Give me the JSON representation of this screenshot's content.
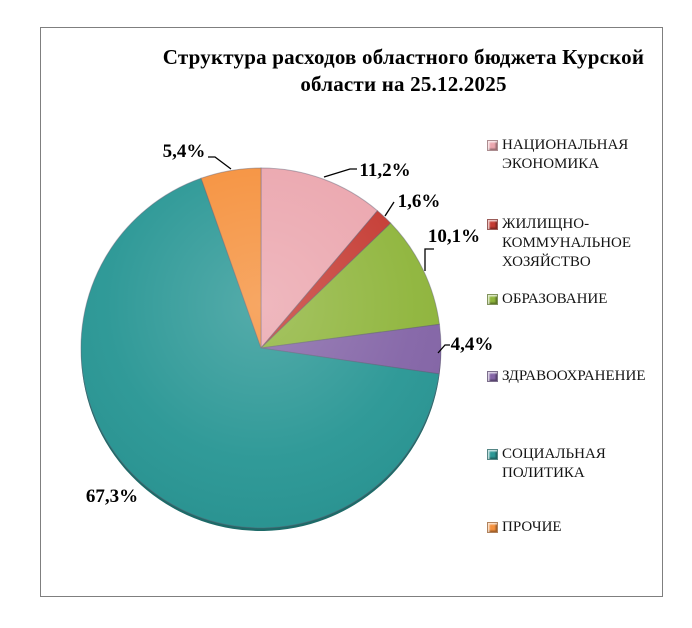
{
  "title": "Структура  расходов областного бюджета Курской области на 25.12.2025",
  "chart_data": {
    "type": "pie",
    "title": "Структура  расходов областного бюджета Курской области на 25.12.2025",
    "unit": "%",
    "start_angle_deg": 0,
    "direction": "clockwise",
    "legend_position": "right",
    "slices": [
      {
        "name": "НАЦИОНАЛЬНАЯ ЭКОНОМИКА",
        "value": 11.2,
        "label": "11,2%",
        "color": "#EBA6AE"
      },
      {
        "name": "ЖИЛИЩНО-КОММУНАЛЬНОЕ ХОЗЯЙСТВО",
        "value": 1.6,
        "label": "1,6%",
        "color": "#C53B33"
      },
      {
        "name": "ОБРАЗОВАНИЕ",
        "value": 10.1,
        "label": "10,1%",
        "color": "#8FB53C"
      },
      {
        "name": "ЗДРАВООХРАНЕНИЕ",
        "value": 4.4,
        "label": "4,4%",
        "color": "#8465A7"
      },
      {
        "name": "СОЦИАЛЬНАЯ ПОЛИТИКА",
        "value": 67.3,
        "label": "67,3%",
        "color": "#2A9795"
      },
      {
        "name": "ПРОЧИЕ",
        "value": 5.4,
        "label": "5,4%",
        "color": "#F5913D"
      }
    ]
  }
}
